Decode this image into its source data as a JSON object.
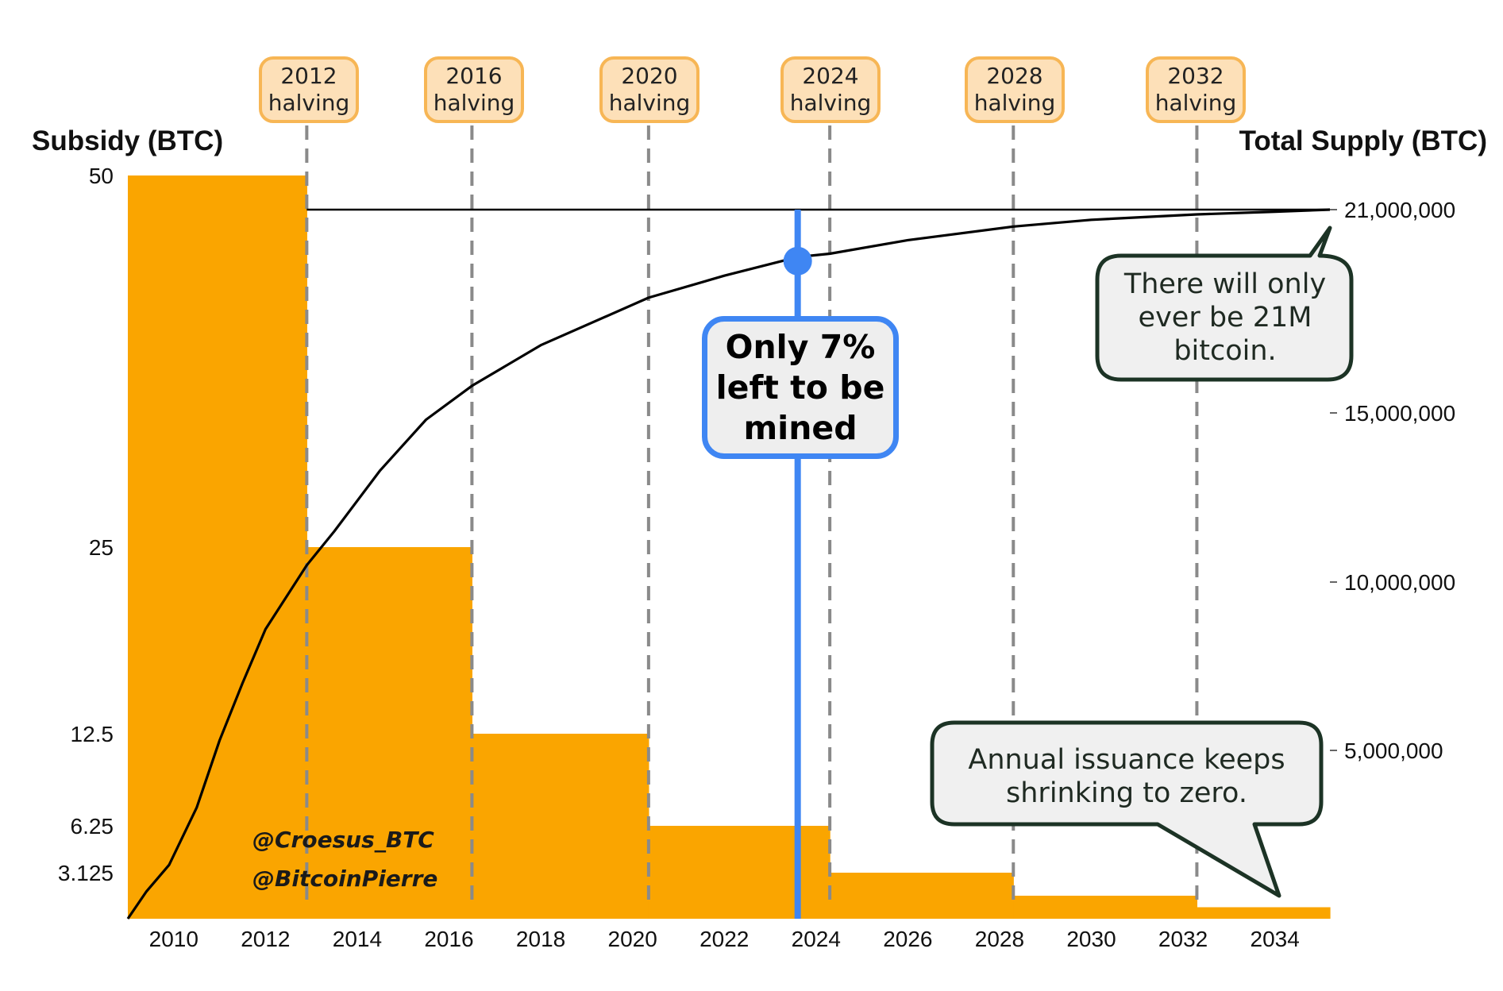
{
  "chart_data": {
    "type": "bar",
    "subtype": "step-area with cumulative supply line",
    "left_axis": {
      "title": "Subsidy (BTC)",
      "ticks": [
        50,
        25,
        12.5,
        6.25,
        3.125
      ],
      "tick_labels": [
        "50",
        "25",
        "12.5",
        "6.25",
        "3.125"
      ]
    },
    "right_axis": {
      "title": "Total Supply (BTC)",
      "ticks": [
        21000000,
        15000000,
        10000000,
        5000000
      ],
      "tick_labels": [
        "21,000,000",
        "15,000,000",
        "10,000,000",
        "5,000,000"
      ]
    },
    "x_axis": {
      "ticks": [
        2010,
        2012,
        2014,
        2016,
        2018,
        2020,
        2022,
        2024,
        2026,
        2028,
        2030,
        2032,
        2034
      ],
      "tick_labels": [
        "2010",
        "2012",
        "2014",
        "2016",
        "2018",
        "2020",
        "2022",
        "2024",
        "2026",
        "2028",
        "2030",
        "2032",
        "2034"
      ],
      "range": [
        2009.0,
        2035.2
      ]
    },
    "subsidy_steps": [
      {
        "start": 2009.0,
        "end": 2012.9,
        "value": 50
      },
      {
        "start": 2012.9,
        "end": 2016.5,
        "value": 25
      },
      {
        "start": 2016.5,
        "end": 2020.35,
        "value": 12.5
      },
      {
        "start": 2020.35,
        "end": 2024.3,
        "value": 6.25
      },
      {
        "start": 2024.3,
        "end": 2028.3,
        "value": 3.125
      },
      {
        "start": 2028.3,
        "end": 2032.3,
        "value": 1.5625
      },
      {
        "start": 2032.3,
        "end": 2035.2,
        "value": 0.78125
      }
    ],
    "supply_series": {
      "name": "",
      "x": [
        2009.0,
        2009.4,
        2009.9,
        2010.5,
        2011.0,
        2011.5,
        2012.0,
        2012.9,
        2013.5,
        2014.5,
        2015.5,
        2016.5,
        2018.0,
        2020.35,
        2022.0,
        2023.6,
        2024.3,
        2026.0,
        2028.3,
        2030.0,
        2032.3,
        2034.0,
        2035.2
      ],
      "y": [
        0,
        800000,
        1600000,
        3300000,
        5300000,
        7000000,
        8600000,
        10500000,
        11500000,
        13300000,
        14800000,
        15800000,
        17000000,
        18400000,
        19050000,
        19600000,
        19700000,
        20100000,
        20500000,
        20700000,
        20860000,
        20940000,
        21000000
      ]
    },
    "supply_cap": 21000000,
    "halvings": [
      {
        "year": 2012.9,
        "label_line1": "2012",
        "label_line2": "halving"
      },
      {
        "year": 2016.5,
        "label_line1": "2016",
        "label_line2": "halving"
      },
      {
        "year": 2020.35,
        "label_line1": "2020",
        "label_line2": "halving"
      },
      {
        "year": 2024.3,
        "label_line1": "2024",
        "label_line2": "halving"
      },
      {
        "year": 2028.3,
        "label_line1": "2028",
        "label_line2": "halving"
      },
      {
        "year": 2032.3,
        "label_line1": "2032",
        "label_line2": "halving"
      }
    ],
    "current_marker": {
      "year": 2023.6,
      "supply": 19600000
    },
    "colors": {
      "subsidy_fill": "#faa500",
      "supply_line": "#000000",
      "halving_line": "#8a8a8a",
      "marker": "#3f86f3",
      "halving_box_fill": "#fde0b8",
      "halving_box_border": "#f7b655",
      "bubble_border": "#1c3325",
      "bubble_fill": "#f0f0f0"
    }
  },
  "annotations": {
    "mined_line1": "Only 7%",
    "mined_line2": "left to be",
    "mined_line3": "mined",
    "cap_line1": "There will only",
    "cap_line2": "ever be 21M",
    "cap_line3": "bitcoin.",
    "issuance_line1": "Annual issuance keeps",
    "issuance_line2": "shrinking to zero."
  },
  "credits": {
    "line1": "@Croesus_BTC",
    "line2": "@BitcoinPierre"
  }
}
